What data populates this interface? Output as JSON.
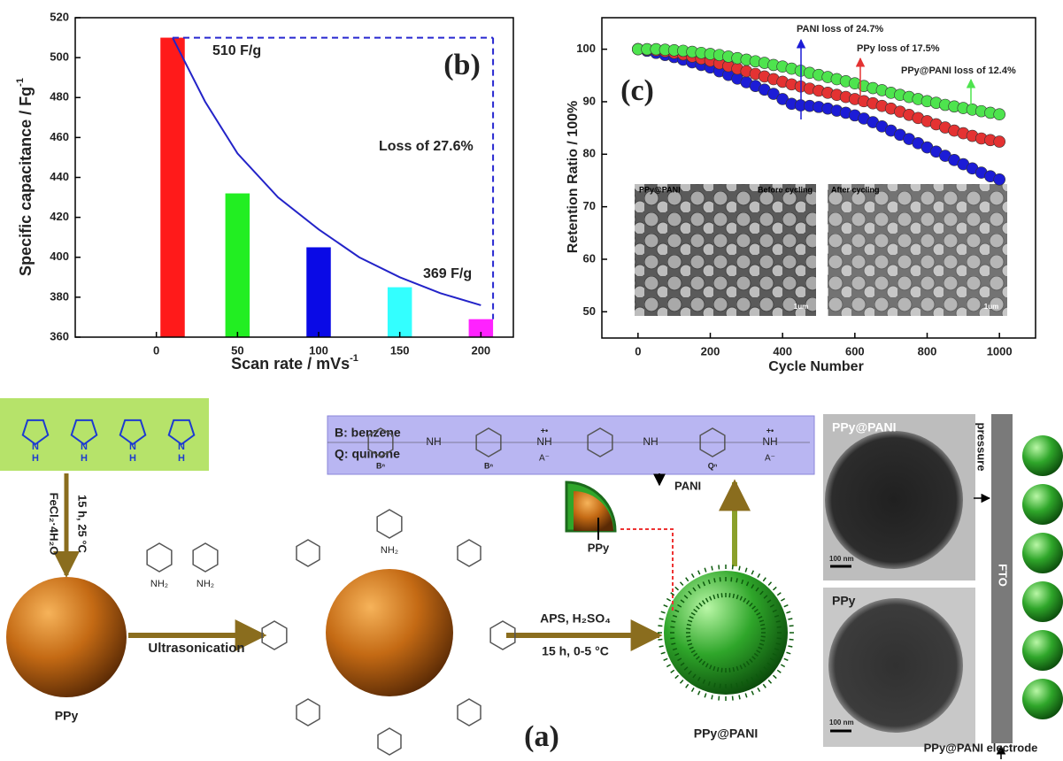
{
  "chart_data": [
    {
      "type": "bar",
      "panel_label": "(b)",
      "xlabel": "Scan rate / mVs",
      "xlabel_sup": "-1",
      "ylabel": "Specific capacitance / Fg",
      "ylabel_sup": "-1",
      "x": [
        10,
        50,
        100,
        150,
        200
      ],
      "values": [
        510,
        432,
        405,
        385,
        369
      ],
      "colors": [
        "#ff1a1a",
        "#22ee22",
        "#0a0ae6",
        "#33ffff",
        "#ff22ff"
      ],
      "xlim": [
        -50,
        220
      ],
      "ylim": [
        360,
        520
      ],
      "xticks": [
        0,
        50,
        100,
        150,
        200
      ],
      "yticks": [
        360,
        380,
        400,
        420,
        440,
        460,
        480,
        500,
        520
      ],
      "fit": {
        "x": [
          10,
          30,
          50,
          75,
          100,
          125,
          150,
          175,
          200
        ],
        "values": [
          510,
          478,
          452,
          430,
          414,
          400,
          390,
          382,
          376
        ],
        "color": "#2323c8"
      },
      "annotations": [
        "510 F/g",
        "Loss of 27.6%",
        "369 F/g"
      ]
    },
    {
      "type": "scatter",
      "panel_label": "(c)",
      "xlabel": "Cycle Number",
      "ylabel": "Retention Ratio / 100%",
      "x": [
        0,
        25,
        50,
        75,
        100,
        125,
        150,
        175,
        200,
        225,
        250,
        275,
        300,
        325,
        350,
        375,
        400,
        425,
        450,
        475,
        500,
        525,
        550,
        575,
        600,
        625,
        650,
        675,
        700,
        725,
        750,
        775,
        800,
        825,
        850,
        875,
        900,
        925,
        950,
        975,
        1000
      ],
      "series": [
        {
          "color": "#1c1cd6",
          "values": [
            100,
            99.7,
            99.3,
            98.9,
            98.5,
            98.0,
            97.5,
            97.0,
            96.5,
            95.8,
            95.1,
            94.4,
            93.7,
            93.0,
            92.3,
            91.5,
            90.5,
            89.6,
            89.3,
            89.2,
            89.0,
            88.7,
            88.3,
            87.9,
            87.4,
            86.8,
            86.1,
            85.3,
            84.5,
            83.7,
            82.9,
            82.1,
            81.3,
            80.5,
            79.7,
            78.9,
            78.1,
            77.3,
            76.5,
            75.8,
            75.2
          ]
        },
        {
          "color": "#e43232",
          "values": [
            100,
            99.9,
            99.8,
            99.6,
            99.3,
            99.0,
            98.6,
            98.2,
            97.8,
            97.3,
            96.8,
            96.3,
            95.8,
            95.3,
            94.8,
            94.3,
            93.8,
            93.3,
            92.9,
            92.5,
            92.1,
            91.7,
            91.3,
            90.9,
            90.5,
            90.1,
            89.7,
            89.2,
            88.7,
            88.1,
            87.5,
            86.9,
            86.3,
            85.7,
            85.1,
            84.5,
            84.0,
            83.5,
            83.0,
            82.7,
            82.4
          ]
        },
        {
          "color": "#4ee44e",
          "values": [
            100,
            100,
            100,
            99.9,
            99.8,
            99.7,
            99.5,
            99.3,
            99.1,
            98.9,
            98.6,
            98.3,
            98.0,
            97.7,
            97.4,
            97.0,
            96.7,
            96.3,
            95.9,
            95.5,
            95.1,
            94.7,
            94.3,
            93.9,
            93.5,
            93.0,
            92.6,
            92.2,
            91.7,
            91.3,
            90.9,
            90.5,
            90.1,
            89.8,
            89.4,
            89.1,
            88.8,
            88.5,
            88.2,
            87.9,
            87.6
          ]
        }
      ],
      "xlim": [
        -100,
        1100
      ],
      "ylim": [
        45,
        106
      ],
      "xticks": [
        0,
        200,
        400,
        600,
        800,
        1000
      ],
      "yticks": [
        50,
        60,
        70,
        80,
        90,
        100
      ],
      "annotations": [
        "PANI loss of 24.7%",
        "PPy loss of 17.5%",
        "PPy@PANI loss of 12.4%"
      ],
      "insets": {
        "sample": "PPy@PANI",
        "before": "Before cycling",
        "after": "After cycling",
        "scale": "1um"
      }
    }
  ],
  "diagram": {
    "panel_label": "(a)",
    "pyrrole_atoms": [
      "N",
      "H"
    ],
    "reagent": "FeCl₂·4H₂O",
    "conditions_1": "15 h, 25 °C",
    "ppy": "PPy",
    "amine": "NH₂",
    "ultrasonication": "Ultrasonication",
    "reagent_2": "APS, H₂SO₄",
    "conditions_2": "15 h, 0-5 °C",
    "product": "PPy@PANI",
    "pani": "PANI",
    "legend_b": "B: benzene",
    "legend_q": "Q: quinone",
    "chain": {
      "nh": "NH",
      "charge": "+•",
      "anion": "A⁻",
      "b": "Bⁿ",
      "q": "Qⁿ"
    },
    "tem": {
      "top": "PPy@PANI",
      "bottom": "PPy",
      "scale": "100 nm"
    },
    "pressure": "pressure",
    "fto": "FTO",
    "electrode": "PPy@PANI electrode"
  }
}
